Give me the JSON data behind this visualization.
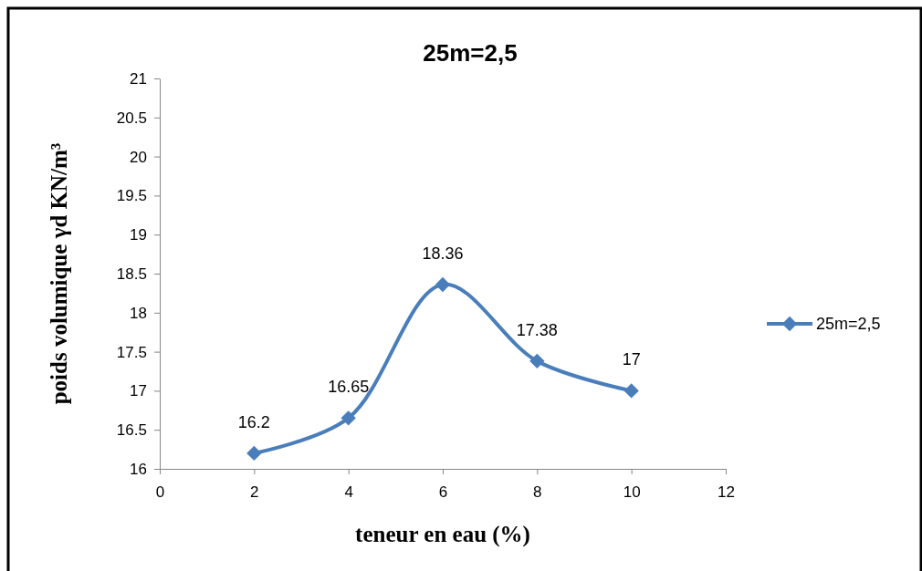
{
  "chart_data": {
    "type": "line",
    "title": "25m=2,5",
    "xlabel": "teneur en eau (%)",
    "ylabel": "poids volumique γd KN/m³",
    "x": [
      2,
      4,
      6,
      8,
      10
    ],
    "series": [
      {
        "name": "25m=2,5",
        "color": "#4a7ebb",
        "values": [
          16.2,
          16.65,
          18.36,
          17.38,
          17
        ]
      }
    ],
    "xlim": [
      0,
      12
    ],
    "xticks": [
      0,
      2,
      4,
      6,
      8,
      10,
      12
    ],
    "ylim": [
      16,
      21
    ],
    "yticks": [
      16,
      16.5,
      17,
      17.5,
      18,
      18.5,
      19,
      19.5,
      20,
      20.5,
      21
    ],
    "data_labels": true,
    "marker": "diamond",
    "legend": "right",
    "grid": false
  }
}
